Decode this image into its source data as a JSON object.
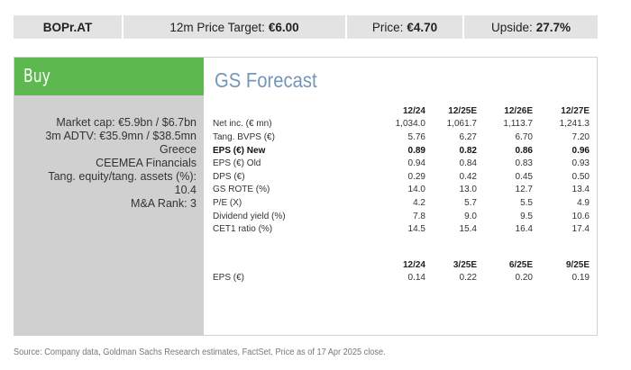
{
  "header": {
    "ticker": "BOPr.AT",
    "price_target_label": "12m Price Target:",
    "price_target_value": "€6.00",
    "price_label": "Price:",
    "price_value": "€4.70",
    "upside_label": "Upside:",
    "upside_value": "27.7%"
  },
  "rating": "Buy",
  "left_info": [
    "Market cap: €5.9bn / $6.7bn",
    "3m ADTV: €35.9mn / $38.5mn",
    "Greece",
    "CEEMEA Financials",
    "Tang. equity/tang. assets (%):",
    "10.4",
    "M&A Rank: 3"
  ],
  "forecast": {
    "title": "GS Forecast",
    "annual_headers": [
      "12/24",
      "12/25E",
      "12/26E",
      "12/27E"
    ],
    "annual_rows": [
      {
        "label": "Net inc. (€ mn)",
        "values": [
          "1,034.0",
          "1,061.7",
          "1,113.7",
          "1,241.3"
        ]
      },
      {
        "label": "Tang. BVPS (€)",
        "values": [
          "5.76",
          "6.27",
          "6.70",
          "7.20"
        ]
      },
      {
        "label": "EPS (€) New",
        "values": [
          "0.89",
          "0.82",
          "0.86",
          "0.96"
        ]
      },
      {
        "label": "EPS (€) Old",
        "values": [
          "0.94",
          "0.84",
          "0.83",
          "0.93"
        ]
      },
      {
        "label": "DPS (€)",
        "values": [
          "0.29",
          "0.42",
          "0.45",
          "0.50"
        ]
      },
      {
        "label": "GS ROTE (%)",
        "values": [
          "14.0",
          "13.0",
          "12.7",
          "13.4"
        ]
      },
      {
        "label": "P/E (X)",
        "values": [
          "4.2",
          "5.7",
          "5.5",
          "4.9"
        ]
      },
      {
        "label": "Dividend yield (%)",
        "values": [
          "7.8",
          "9.0",
          "9.5",
          "10.6"
        ]
      },
      {
        "label": "CET1 ratio (%)",
        "values": [
          "14.5",
          "15.4",
          "16.4",
          "17.4"
        ]
      }
    ],
    "quarterly_headers": [
      "12/24",
      "3/25E",
      "6/25E",
      "9/25E"
    ],
    "quarterly_rows": [
      {
        "label": "EPS (€)",
        "values": [
          "0.14",
          "0.22",
          "0.20",
          "0.19"
        ]
      }
    ]
  },
  "source_note": "Source: Company data, Goldman Sachs Research estimates, FactSet. Price as of 17 Apr 2025 close."
}
